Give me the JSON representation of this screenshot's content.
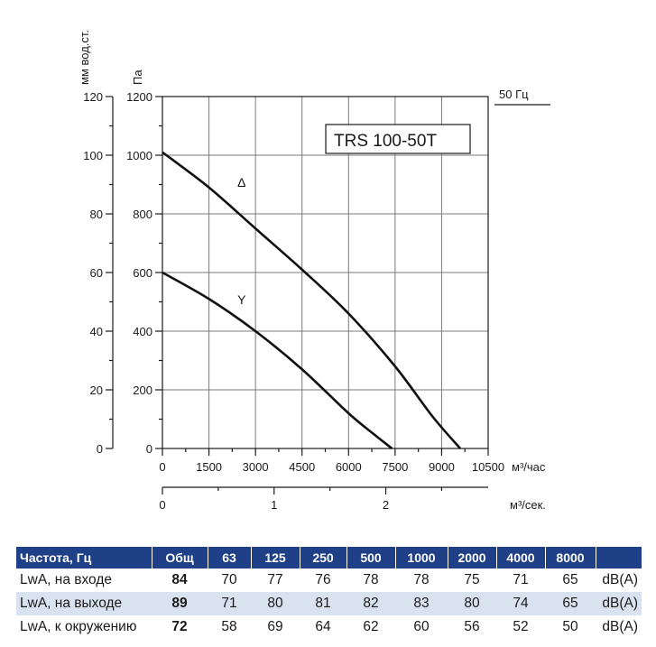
{
  "chart_data": {
    "type": "line",
    "model_label": "TRS 100-50T",
    "frequency_label": "50 Гц",
    "y_left_label": "мм вод.ст.",
    "y_left_ticks": [
      0,
      20,
      40,
      60,
      80,
      100,
      120
    ],
    "y_label": "Па",
    "y_ticks": [
      0,
      200,
      400,
      600,
      800,
      1000,
      1200
    ],
    "ylim": [
      0,
      1200
    ],
    "x_label": "м³/час",
    "x_ticks": [
      0,
      1500,
      3000,
      4500,
      6000,
      7500,
      9000,
      10500
    ],
    "xlim": [
      0,
      10500
    ],
    "x2_label": "м³/сек.",
    "x2_ticks": [
      0,
      1,
      2
    ],
    "grid": true,
    "series": [
      {
        "name": "Δ",
        "x": [
          0,
          1500,
          3000,
          4500,
          6000,
          7500,
          8700,
          9600
        ],
        "y": [
          1010,
          890,
          750,
          610,
          460,
          280,
          110,
          0
        ]
      },
      {
        "name": "Y",
        "x": [
          0,
          1500,
          3000,
          4500,
          6000,
          6800,
          7400
        ],
        "y": [
          600,
          510,
          400,
          270,
          120,
          50,
          0
        ]
      }
    ]
  },
  "table": {
    "headers": [
      "Частота, Гц",
      "Общ",
      "63",
      "125",
      "250",
      "500",
      "1000",
      "2000",
      "4000",
      "8000",
      ""
    ],
    "rows": [
      {
        "label": "LwA, на входе",
        "total": "84",
        "values": [
          "70",
          "77",
          "76",
          "78",
          "78",
          "75",
          "71",
          "65"
        ],
        "unit": "dB(A)"
      },
      {
        "label": "LwA, на выходе",
        "total": "89",
        "values": [
          "71",
          "80",
          "81",
          "82",
          "83",
          "80",
          "74",
          "65"
        ],
        "unit": "dB(A)"
      },
      {
        "label": "LwA, к окружению",
        "total": "72",
        "values": [
          "58",
          "69",
          "64",
          "62",
          "60",
          "56",
          "52",
          "50"
        ],
        "unit": "dB(A)"
      }
    ]
  }
}
